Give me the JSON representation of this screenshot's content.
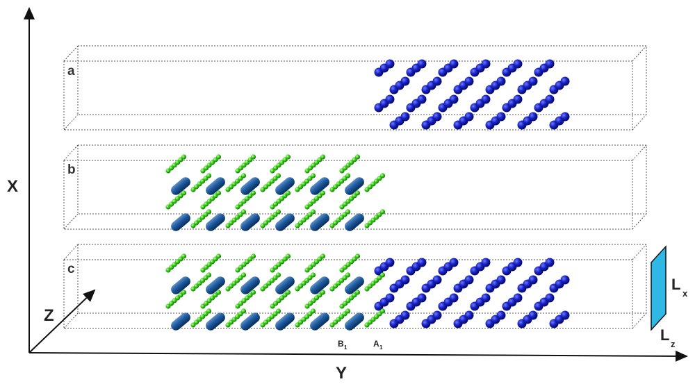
{
  "axes": {
    "x": "X",
    "y": "Y",
    "z": "Z"
  },
  "panels": [
    {
      "label": "a"
    },
    {
      "label": "b"
    },
    {
      "label": "c"
    }
  ],
  "markers": [
    {
      "main": "B",
      "sub": "1"
    },
    {
      "main": "A",
      "sub": "1"
    }
  ],
  "dimensions": [
    {
      "main": "L",
      "sub": "x"
    },
    {
      "main": "L",
      "sub": "z"
    }
  ]
}
